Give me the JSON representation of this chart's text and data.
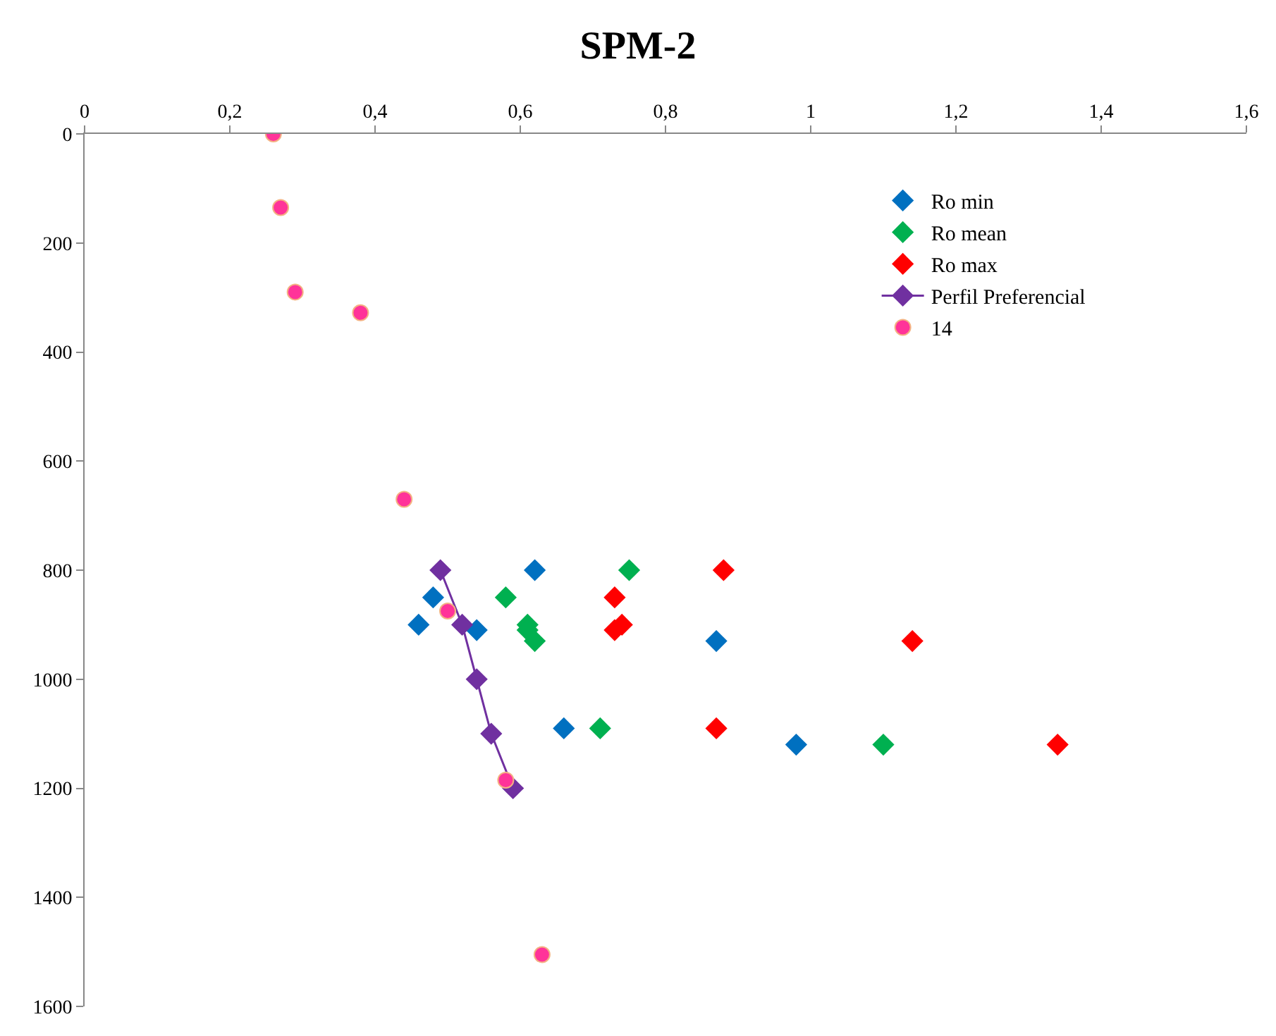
{
  "chart_data": {
    "type": "scatter",
    "title": "SPM-2",
    "xlim": [
      0,
      1.6
    ],
    "xticks": [
      {
        "value": 0,
        "label": "0"
      },
      {
        "value": 0.2,
        "label": "0,2"
      },
      {
        "value": 0.4,
        "label": "0,4"
      },
      {
        "value": 0.6,
        "label": "0,6"
      },
      {
        "value": 0.8,
        "label": "0,8"
      },
      {
        "value": 1,
        "label": "1"
      },
      {
        "value": 1.2,
        "label": "1,2"
      },
      {
        "value": 1.4,
        "label": "1,4"
      },
      {
        "value": 1.6,
        "label": "1,6"
      }
    ],
    "ylim": [
      1600,
      0
    ],
    "yticks": [
      0,
      200,
      400,
      600,
      800,
      1000,
      1200,
      1400,
      1600
    ],
    "legend": "top right",
    "marker": "diamond",
    "series": [
      {
        "name": "Ro min",
        "color": "#0070c0",
        "x": [
          0.62,
          0.48,
          0.46,
          0.54,
          0.87,
          0.66,
          0.98
        ],
        "values": [
          800,
          850,
          900,
          910,
          930,
          1090,
          1120
        ]
      },
      {
        "name": "Ro mean",
        "color": "#00b050",
        "x": [
          0.75,
          0.58,
          0.61,
          0.61,
          0.62,
          0.71,
          1.1
        ],
        "values": [
          800,
          850,
          900,
          910,
          930,
          1090,
          1120
        ]
      },
      {
        "name": "Ro max",
        "color": "#ff0000",
        "x": [
          0.88,
          0.73,
          0.74,
          0.73,
          1.14,
          0.87,
          1.34
        ],
        "values": [
          800,
          850,
          900,
          910,
          930,
          1090,
          1120
        ]
      },
      {
        "name": "Perfil Preferencial",
        "type": "line",
        "color": "#7030a0",
        "x": [
          0.49,
          0.52,
          0.54,
          0.56,
          0.59
        ],
        "values": [
          800,
          900,
          1000,
          1100,
          1200
        ]
      },
      {
        "name": "14",
        "color": "#ff3399",
        "marker": "circle",
        "x": [
          0.26,
          0.27,
          0.29,
          0.38,
          0.44,
          0.5,
          0.58,
          0.63
        ],
        "values": [
          0,
          135,
          290,
          328,
          670,
          875,
          1185,
          1505
        ]
      }
    ]
  }
}
